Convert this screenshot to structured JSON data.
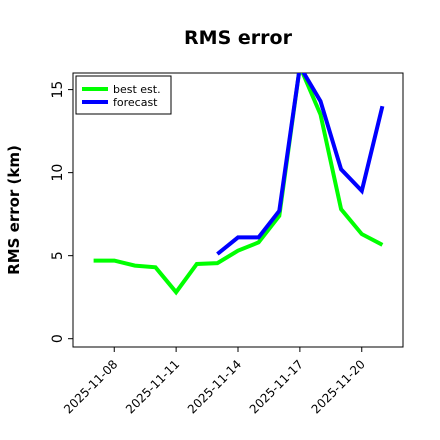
{
  "chart_data": {
    "type": "line",
    "title": "RMS error",
    "ylabel": "RMS error (km)",
    "xlabel": "",
    "xlim": [
      "2025-11-06",
      "2025-11-22"
    ],
    "ylim": [
      -0.5,
      16
    ],
    "yticks": [
      0,
      5,
      10,
      15
    ],
    "xticks": [
      "2025-11-08",
      "2025-11-11",
      "2025-11-14",
      "2025-11-17",
      "2025-11-20"
    ],
    "grid": false,
    "legend_position": "top-left",
    "series": [
      {
        "name": "best est.",
        "color": "#00ff00",
        "x": [
          "2025-11-07",
          "2025-11-08",
          "2025-11-09",
          "2025-11-10",
          "2025-11-11",
          "2025-11-12",
          "2025-11-13",
          "2025-11-14",
          "2025-11-15",
          "2025-11-16",
          "2025-11-17",
          "2025-11-18",
          "2025-11-19",
          "2025-11-20",
          "2025-11-21"
        ],
        "y": [
          4.7,
          4.7,
          4.4,
          4.3,
          2.8,
          4.5,
          4.55,
          5.3,
          5.8,
          7.4,
          16.4,
          13.5,
          7.8,
          6.3,
          5.65
        ]
      },
      {
        "name": "forecast",
        "color": "#0000ff",
        "x": [
          "2025-11-13",
          "2025-11-14",
          "2025-11-15",
          "2025-11-16",
          "2025-11-17",
          "2025-11-18",
          "2025-11-19",
          "2025-11-20",
          "2025-11-21"
        ],
        "y": [
          5.1,
          6.1,
          6.1,
          7.7,
          16.4,
          14.3,
          10.2,
          8.9,
          14.0
        ]
      }
    ]
  }
}
